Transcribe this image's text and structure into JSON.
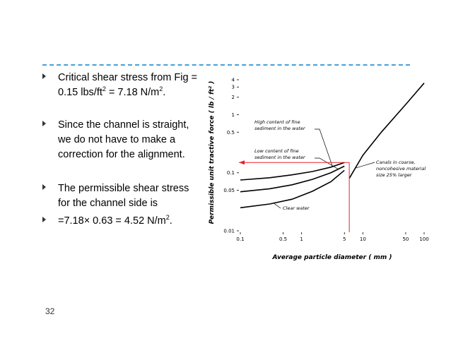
{
  "slide": {
    "page_number": "32",
    "bullets": [
      {
        "line1": "Critical shear stress from Fig =",
        "line2_pre": "0.15 lbs/ft",
        "line2_sup1": "2",
        "line2_mid": " = 7.18 N/m",
        "line2_sup2": "2",
        "line2_post": "."
      },
      {
        "lines": [
          "Since the channel is straight,",
          "we do not have to make a",
          "correction for the alignment."
        ]
      },
      {
        "lines": [
          "The permissible shear stress",
          "for the channel side is"
        ]
      },
      {
        "pre": "=7.18× 0.63 = 4.52 N/m",
        "sup": "2",
        "post": "."
      }
    ]
  },
  "chart_data": {
    "type": "line",
    "x_scale": "log",
    "y_scale": "log",
    "xlabel": "Average  particle  diameter      ( mm )",
    "ylabel": "Permissible unit tractive force    ( lb / ft² )",
    "x_ticks": [
      "0.1",
      "0.5",
      "1",
      "5",
      "10",
      "50",
      "100"
    ],
    "y_ticks": [
      "4",
      "3",
      "2",
      "1",
      "0.5",
      "0.1",
      "0.05",
      "0.01"
    ],
    "series": [
      {
        "name": "High content of fine sediment in the water",
        "x": [
          0.1,
          0.3,
          0.7,
          1.5,
          3,
          5
        ],
        "y": [
          0.075,
          0.082,
          0.092,
          0.105,
          0.125,
          0.15
        ]
      },
      {
        "name": "Low content of fine sediment in the water",
        "x": [
          0.1,
          0.3,
          0.7,
          1.5,
          3,
          5
        ],
        "y": [
          0.047,
          0.053,
          0.062,
          0.077,
          0.1,
          0.13
        ]
      },
      {
        "name": "Clear water",
        "x": [
          0.1,
          0.3,
          0.7,
          1.5,
          3,
          5
        ],
        "y": [
          0.025,
          0.029,
          0.035,
          0.048,
          0.07,
          0.11
        ]
      },
      {
        "name": "Canals in coarse, noncohesive material size 25% larger",
        "x": [
          6,
          10,
          20,
          50,
          100
        ],
        "y": [
          0.08,
          0.2,
          0.5,
          1.5,
          3.5
        ]
      }
    ],
    "annotations": {
      "high_content": [
        "High  content  of  fine",
        "sediment  in  the  water"
      ],
      "low_content": [
        "Low  content  of  fine",
        "sediment  in  the  water"
      ],
      "clear_water": "Clear  water",
      "canals": [
        "Canals  in  coarse,",
        "noncohesive  material",
        "size  25%  larger"
      ]
    },
    "reading": {
      "x": 6,
      "y": 0.15,
      "color": "#e8212a"
    }
  }
}
